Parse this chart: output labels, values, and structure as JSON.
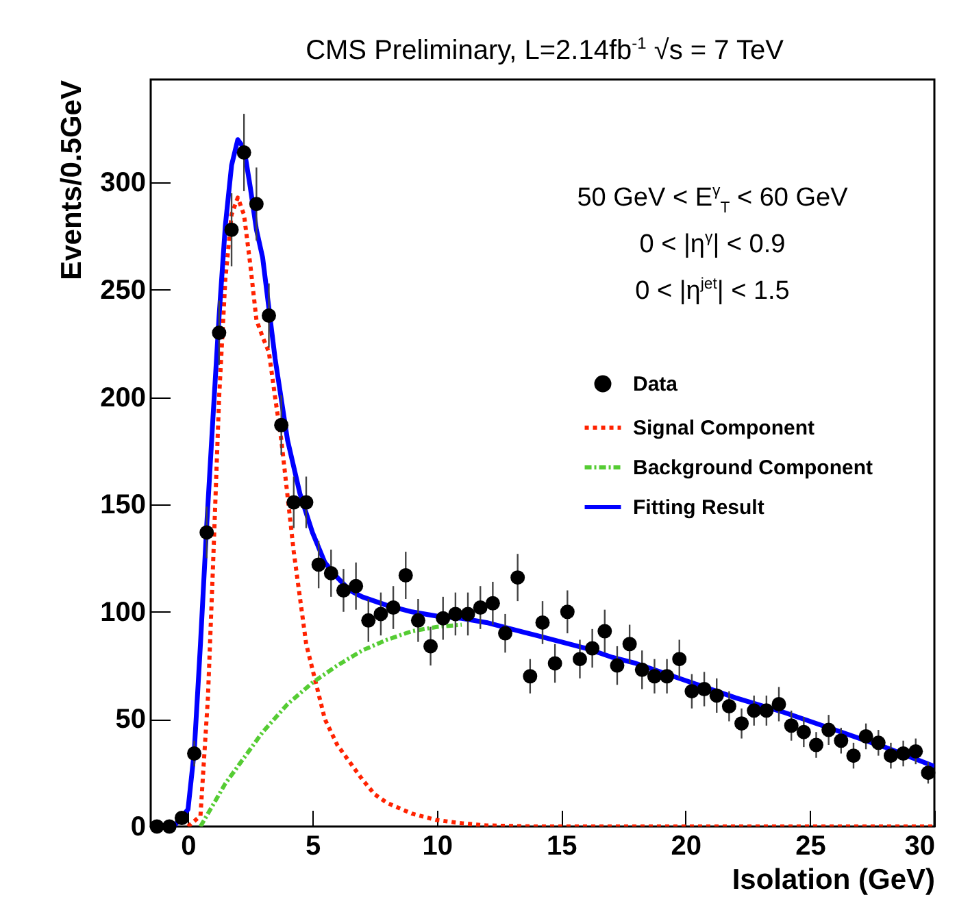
{
  "chart_data": {
    "type": "scatter",
    "title": "CMS Preliminary, L=2.14fb$^{-1}$  √s = 7 TeV",
    "xlabel": "Isolation (GeV)",
    "ylabel": "Events/0.5GeV",
    "annotations": [
      "50 GeV < E$^{γ}$$_{T}$ < 60 GeV",
      "0 < |η$^{γ}$| < 0.9",
      "0 < |η$^{jet}$| < 1.5"
    ],
    "xlim": [
      -1.5,
      30
    ],
    "xticks": [
      0,
      5,
      10,
      15,
      20,
      25,
      30
    ],
    "ylim": [
      0,
      348
    ],
    "yticks": [
      0,
      50,
      100,
      150,
      200,
      250,
      300
    ],
    "grid": false,
    "legend": "top right",
    "series": [
      {
        "name": "Data",
        "marker": "circle",
        "color": "#000000",
        "x": [
          -1.25,
          -0.75,
          -0.25,
          0.25,
          0.75,
          1.25,
          1.75,
          2.25,
          2.75,
          3.25,
          3.75,
          4.25,
          4.75,
          5.25,
          5.75,
          6.25,
          6.75,
          7.25,
          7.75,
          8.25,
          8.75,
          9.25,
          9.75,
          10.25,
          10.75,
          11.25,
          11.75,
          12.25,
          12.75,
          13.25,
          13.75,
          14.25,
          14.75,
          15.25,
          15.75,
          16.25,
          16.75,
          17.25,
          17.75,
          18.25,
          18.75,
          19.25,
          19.75,
          20.25,
          20.75,
          21.25,
          21.75,
          22.25,
          22.75,
          23.25,
          23.75,
          24.25,
          24.75,
          25.25,
          25.75,
          26.25,
          26.75,
          27.25,
          27.75,
          28.25,
          28.75,
          29.25,
          29.75
        ],
        "values": [
          0,
          0,
          4,
          34,
          137,
          230,
          278,
          314,
          290,
          238,
          187,
          151,
          151,
          122,
          118,
          110,
          112,
          96,
          99,
          102,
          117,
          96,
          84,
          97,
          99,
          99,
          102,
          104,
          90,
          116,
          70,
          95,
          76,
          100,
          78,
          83,
          91,
          75,
          85,
          73,
          70,
          70,
          78,
          63,
          64,
          61,
          56,
          48,
          54,
          54,
          57,
          47,
          44,
          38,
          45,
          40,
          33,
          42,
          39,
          33,
          34,
          35,
          25
        ],
        "errors": [
          null,
          null,
          2,
          6,
          12,
          15,
          17,
          18,
          17,
          15,
          14,
          12,
          12,
          11,
          11,
          10,
          11,
          10,
          10,
          10,
          11,
          10,
          9,
          10,
          10,
          10,
          10,
          10,
          9,
          11,
          8,
          10,
          9,
          10,
          9,
          9,
          10,
          9,
          9,
          9,
          8,
          8,
          9,
          8,
          8,
          8,
          7,
          7,
          7,
          7,
          8,
          7,
          7,
          6,
          7,
          6,
          6,
          6,
          6,
          6,
          6,
          6,
          5
        ]
      },
      {
        "name": "Signal Component",
        "type": "line",
        "line_style": "dotted",
        "color": "#ff2200",
        "x": [
          0,
          0.5,
          0.8,
          1.0,
          1.25,
          1.5,
          1.75,
          2.0,
          2.25,
          2.5,
          2.75,
          3.0,
          3.25,
          3.5,
          3.75,
          4.25,
          4.75,
          5.5,
          6.0,
          6.5,
          7.0,
          7.5,
          8.0,
          9.0,
          10.0,
          11.0,
          12.0,
          14.0,
          30.0
        ],
        "values": [
          0,
          5,
          60,
          120,
          200,
          255,
          285,
          293,
          285,
          262,
          236,
          228,
          221,
          200,
          180,
          128,
          85,
          50,
          38,
          30,
          22,
          15,
          11,
          6,
          3,
          1.5,
          0.5,
          0,
          0
        ]
      },
      {
        "name": "Background Component",
        "type": "line",
        "line_style": "dashed",
        "color": "#55cc33",
        "x": [
          0.5,
          1,
          1.5,
          2,
          3,
          4,
          5,
          6,
          7,
          8,
          9,
          10,
          11
        ],
        "values": [
          0,
          10,
          20,
          28,
          44,
          57,
          67,
          75,
          82,
          87,
          91,
          93,
          94
        ]
      },
      {
        "name": "Fitting Result",
        "type": "line",
        "line_style": "solid",
        "color": "#0000ff",
        "x": [
          -1.5,
          -0.5,
          0,
          0.25,
          0.5,
          0.75,
          1.0,
          1.25,
          1.5,
          1.75,
          2.0,
          2.25,
          2.5,
          2.75,
          3.0,
          3.5,
          4.0,
          4.5,
          5.0,
          5.5,
          6.0,
          6.5,
          7.0,
          7.5,
          8,
          9,
          10,
          11,
          12,
          13,
          14,
          15,
          16,
          17,
          18,
          19,
          20,
          22,
          24,
          26,
          28,
          30
        ],
        "values": [
          0,
          1,
          8,
          35,
          85,
          140,
          190,
          238,
          280,
          308,
          320,
          316,
          298,
          278,
          265,
          218,
          180,
          155,
          137,
          123,
          116,
          110,
          107,
          105,
          103,
          100,
          98,
          97,
          95,
          92,
          89,
          86,
          83,
          79,
          76,
          72,
          68,
          60,
          53,
          45,
          37,
          28
        ]
      }
    ]
  }
}
